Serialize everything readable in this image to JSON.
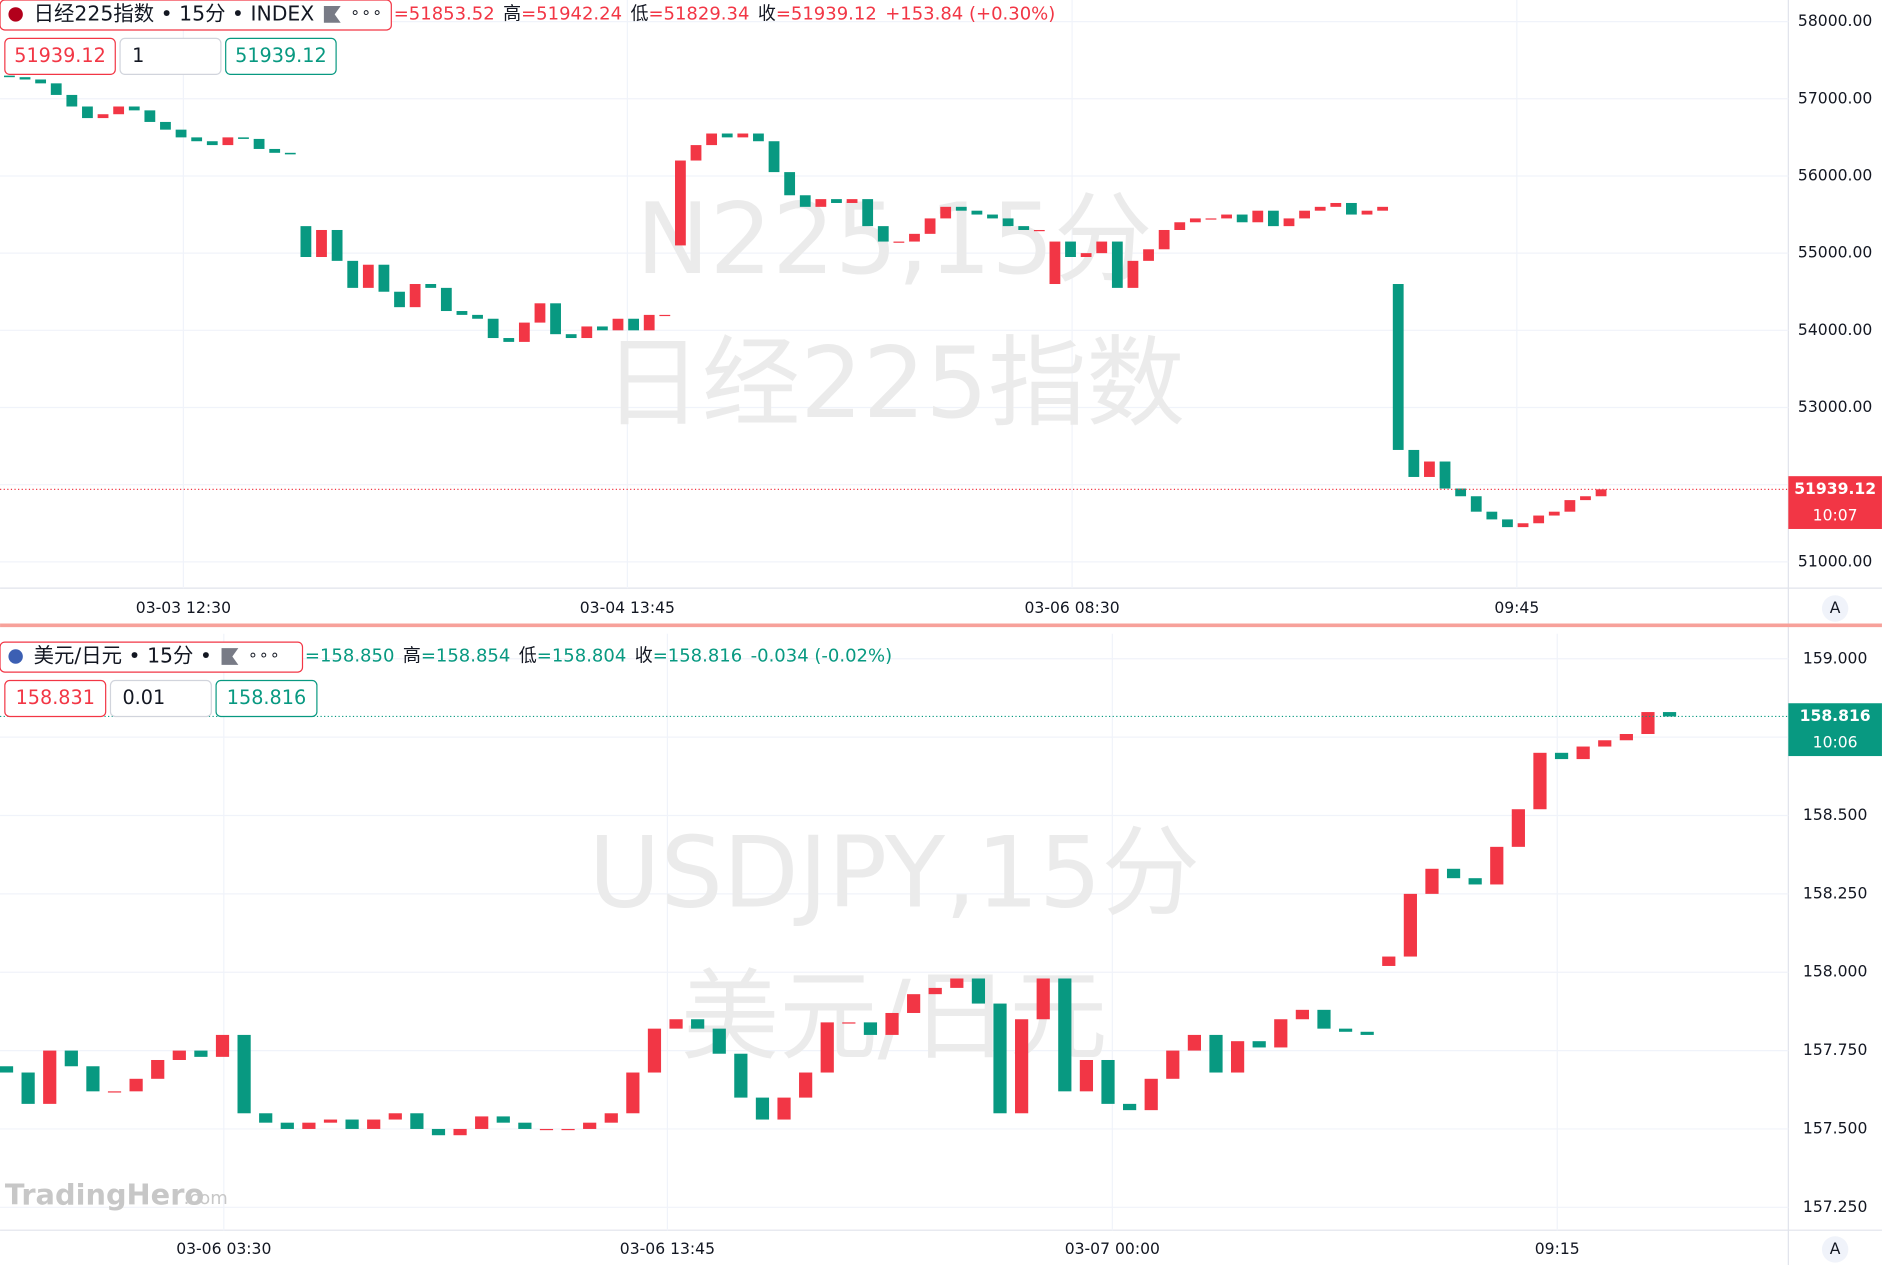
{
  "chart_data": [
    {
      "type": "candlestick",
      "title": "日经225指数 • 15分 • INDEX",
      "ohlc": [
        {
          "value": "=51853.52"
        },
        {
          "label": "高",
          "value": "=51942.24"
        },
        {
          "label": "低",
          "value": "=51829.34"
        },
        {
          "label": "收",
          "value": "=51939.12"
        }
      ],
      "change": "+153.84 (+0.30%)",
      "inputs": [
        "51939.12",
        "1",
        "51939.12"
      ],
      "watermark": [
        "N225,15分",
        "日经225指数"
      ],
      "last_price_label": "51939.12",
      "last_time": "10:07",
      "color": "#f23645",
      "up_color": "#f23645",
      "down_color": "#089981",
      "series": [
        {
          "name": "N225",
          "open": [
            57300,
            57280,
            57250,
            57200,
            57050,
            56900,
            56750,
            56800,
            56900,
            56850,
            56700,
            56600,
            56500,
            56450,
            56400,
            56500,
            56480,
            56350,
            56300,
            55350,
            54950,
            55300,
            54900,
            54550,
            54850,
            54500,
            54300,
            54600,
            54550,
            54250,
            54200,
            54150,
            53900,
            53850,
            54100,
            54350,
            53950,
            53900,
            54050,
            54000,
            54150,
            54000,
            54200,
            55100,
            56200,
            56400,
            56550,
            56500,
            56550,
            56450,
            56050,
            55750,
            55600,
            55700,
            55650,
            55700,
            55350,
            55150,
            55150,
            55250,
            55450,
            55600,
            55550,
            55500,
            55450,
            55350,
            55300,
            54600,
            55150,
            54950,
            55000,
            55150,
            54550,
            54900,
            55050,
            55300,
            55400,
            55450,
            55450,
            55500,
            55400,
            55550,
            55350,
            55450,
            55550,
            55600,
            55650,
            55500,
            55550,
            54600,
            52450,
            52100,
            52300,
            51950,
            51850,
            51650,
            51550,
            51450,
            51500,
            51600,
            51650,
            51800,
            51850
          ],
          "close": [
            57280,
            57250,
            57200,
            57050,
            56900,
            56750,
            56800,
            56900,
            56850,
            56700,
            56600,
            56500,
            56450,
            56400,
            56500,
            56480,
            56350,
            56300,
            56280,
            54950,
            55300,
            54900,
            54550,
            54850,
            54500,
            54300,
            54600,
            54550,
            54250,
            54200,
            54150,
            53900,
            53850,
            54100,
            54350,
            53950,
            53900,
            54050,
            54000,
            54150,
            54000,
            54200,
            54200,
            56200,
            56400,
            56550,
            56500,
            56550,
            56450,
            56050,
            55750,
            55600,
            55700,
            55650,
            55700,
            55350,
            55150,
            55150,
            55250,
            55450,
            55600,
            55550,
            55500,
            55450,
            55350,
            55300,
            55300,
            55150,
            54950,
            55000,
            55150,
            54550,
            54900,
            55050,
            55300,
            55400,
            55450,
            55450,
            55500,
            55400,
            55550,
            55350,
            55450,
            55550,
            55600,
            55650,
            55500,
            55550,
            55600,
            52450,
            52100,
            52300,
            51950,
            51850,
            51650,
            51550,
            51450,
            51500,
            51600,
            51650,
            51800,
            51850,
            51939.12
          ]
        }
      ],
      "ylim": [
        50660,
        58280
      ],
      "yticks": [
        {
          "value": 51000,
          "label": "51000.00"
        },
        {
          "value": 52000,
          "label": "52000.00"
        },
        {
          "value": 53000,
          "label": "53000.00"
        },
        {
          "value": 54000,
          "label": "54000.00"
        },
        {
          "value": 55000,
          "label": "55000.00"
        },
        {
          "value": 56000,
          "label": "56000.00"
        },
        {
          "value": 57000,
          "label": "57000.00"
        },
        {
          "value": 58000,
          "label": "58000.00"
        }
      ],
      "xlim": [
        -0.6,
        114
      ],
      "xticks": [
        {
          "value": 11.15,
          "label": "03-03 12:30"
        },
        {
          "value": 39.6,
          "label": "03-04 13:45"
        },
        {
          "value": 68.1,
          "label": "03-06 08:30"
        },
        {
          "value": 96.6,
          "label": "09:45"
        }
      ],
      "grid": true,
      "scale_button": "A"
    },
    {
      "type": "candlestick",
      "title": "美元/日元 • 15分 •",
      "ohlc": [
        {
          "value": "=158.850"
        },
        {
          "label": "高",
          "value": "=158.854"
        },
        {
          "label": "低",
          "value": "=158.804"
        },
        {
          "label": "收",
          "value": "=158.816"
        }
      ],
      "change": "-0.034 (-0.02%)",
      "inputs": [
        "158.831",
        "0.01",
        "158.816"
      ],
      "watermark": [
        "USDJPY,15分",
        "美元/日元"
      ],
      "last_price_label": "158.816",
      "last_time": "10:06",
      "color": "#089981",
      "up_color": "#f23645",
      "down_color": "#089981",
      "series": [
        {
          "name": "USDJPY",
          "open": [
            157.7,
            157.68,
            157.58,
            157.75,
            157.7,
            157.62,
            157.62,
            157.66,
            157.72,
            157.75,
            157.73,
            157.8,
            157.55,
            157.52,
            157.5,
            157.52,
            157.53,
            157.5,
            157.53,
            157.55,
            157.5,
            157.48,
            157.5,
            157.54,
            157.52,
            157.5,
            157.5,
            157.5,
            157.52,
            157.55,
            157.68,
            157.82,
            157.85,
            157.82,
            157.74,
            157.6,
            157.53,
            157.6,
            157.68,
            157.84,
            157.84,
            157.8,
            157.87,
            157.93,
            157.95,
            157.98,
            157.9,
            157.55,
            157.85,
            157.98,
            157.62,
            157.72,
            157.58,
            157.56,
            157.66,
            157.75,
            157.8,
            157.68,
            157.78,
            157.76,
            157.85,
            157.88,
            157.82,
            157.81,
            158.02,
            158.05,
            158.25,
            158.33,
            158.3,
            158.28,
            158.4,
            158.52,
            158.7,
            158.68,
            158.72,
            158.74,
            158.76,
            158.83
          ],
          "close": [
            157.68,
            157.58,
            157.75,
            157.7,
            157.62,
            157.62,
            157.66,
            157.72,
            157.75,
            157.73,
            157.8,
            157.55,
            157.52,
            157.5,
            157.52,
            157.53,
            157.5,
            157.53,
            157.55,
            157.5,
            157.48,
            157.5,
            157.54,
            157.52,
            157.5,
            157.5,
            157.5,
            157.52,
            157.55,
            157.68,
            157.82,
            157.85,
            157.82,
            157.74,
            157.6,
            157.53,
            157.6,
            157.68,
            157.84,
            157.84,
            157.8,
            157.87,
            157.93,
            157.95,
            157.98,
            157.9,
            157.55,
            157.85,
            157.98,
            157.62,
            157.72,
            157.58,
            157.56,
            157.66,
            157.75,
            157.8,
            157.68,
            157.78,
            157.76,
            157.85,
            157.88,
            157.82,
            157.81,
            157.8,
            158.05,
            158.25,
            158.33,
            158.3,
            158.28,
            158.4,
            158.52,
            158.7,
            158.68,
            158.72,
            158.74,
            158.76,
            158.83,
            158.816
          ]
        }
      ],
      "ylim": [
        157.177,
        159.08
      ],
      "yticks": [
        {
          "value": 157.25,
          "label": "157.250"
        },
        {
          "value": 157.5,
          "label": "157.500"
        },
        {
          "value": 157.75,
          "label": "157.750"
        },
        {
          "value": 158,
          "label": "158.000"
        },
        {
          "value": 158.25,
          "label": "158.250"
        },
        {
          "value": 158.5,
          "label": "158.500"
        },
        {
          "value": 158.75,
          "label": "158.750"
        },
        {
          "value": 159,
          "label": "159.000"
        }
      ],
      "xlim": [
        -0.3,
        82.5
      ],
      "xticks": [
        {
          "value": 10.06,
          "label": "03-06 03:30"
        },
        {
          "value": 30.6,
          "label": "03-06 13:45"
        },
        {
          "value": 51.2,
          "label": "03-07 00:00"
        },
        {
          "value": 71.8,
          "label": "09:15"
        }
      ],
      "grid": true,
      "scale_button": "A",
      "logo": [
        "TradingHero",
        ".com"
      ]
    }
  ]
}
